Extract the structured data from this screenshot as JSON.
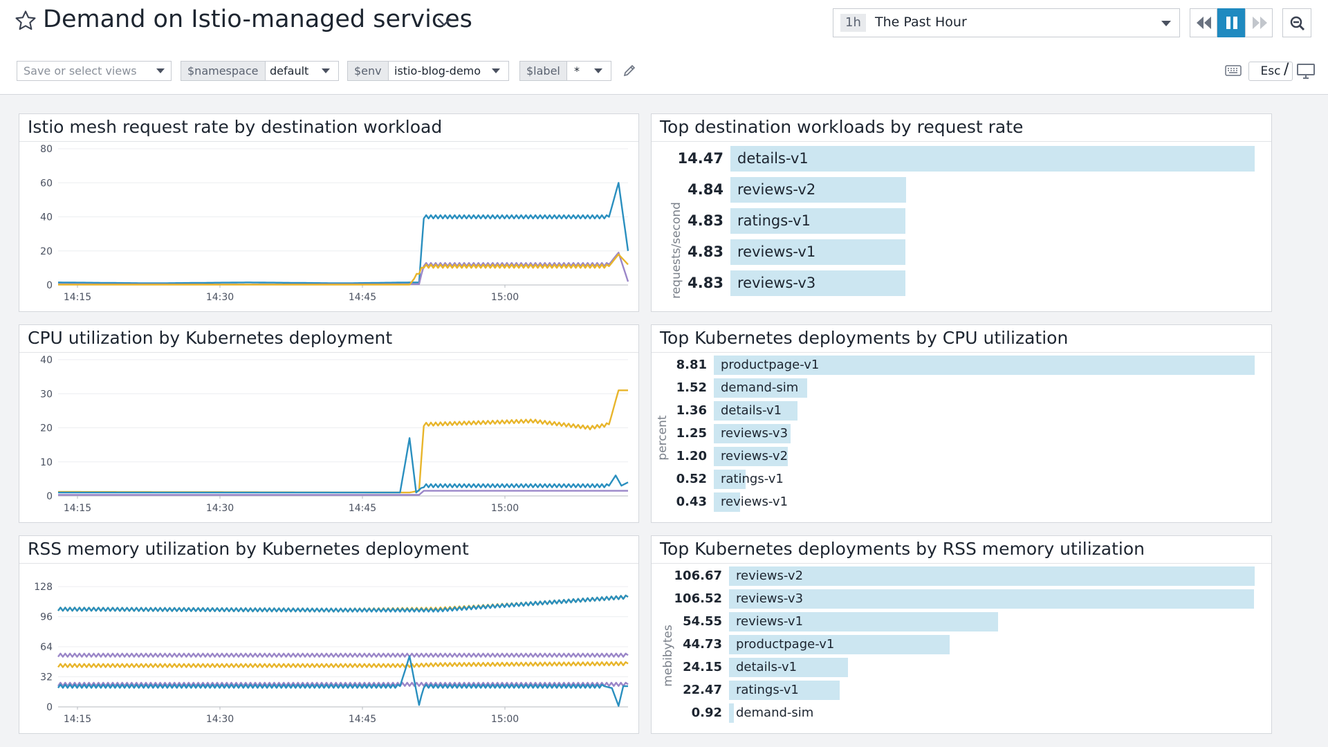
{
  "header": {
    "title": "Demand on Istio-managed services",
    "timeframe": {
      "badge": "1h",
      "label": "The Past Hour"
    },
    "esc_label": "Esc",
    "slash": "/"
  },
  "toolbar": {
    "views_placeholder": "Save or select views",
    "vars": [
      {
        "name": "$namespace",
        "value": "default"
      },
      {
        "name": "$env",
        "value": "istio-blog-demo"
      },
      {
        "name": "$label",
        "value": "*"
      }
    ]
  },
  "icons": {
    "star": "star-icon",
    "chevron": "chevron-down-icon",
    "pencil": "pencil-icon",
    "rewind": "rewind-icon",
    "pause": "pause-icon",
    "forward": "fast-forward-icon",
    "zoom": "zoom-out-icon",
    "keyboard": "keyboard-icon",
    "tv": "tv-mode-icon"
  },
  "colors": {
    "series_blue": "#2a8fbf",
    "series_purple": "#9a86c8",
    "series_yellow": "#e8b52b",
    "bar_fill": "#cce6f1",
    "accent": "#1f8ac0"
  },
  "panels": {
    "request_rate": {
      "title": "Istio mesh request rate by destination workload",
      "chart_data": {
        "type": "line",
        "x_ticks": [
          "14:15",
          "14:30",
          "14:45",
          "15:00"
        ],
        "y_ticks": [
          0,
          20,
          40,
          60,
          80
        ],
        "ylim": [
          0,
          80
        ],
        "x_range_minutes": [
          0,
          60
        ],
        "series": [
          {
            "color": "#2a8fbf",
            "points": [
              [
                0,
                1.5
              ],
              [
                10,
                1
              ],
              [
                20,
                1.5
              ],
              [
                30,
                1
              ],
              [
                37,
                1.5
              ],
              [
                38,
                1.5
              ],
              [
                38.5,
                40
              ],
              [
                58,
                40
              ],
              [
                59,
                60
              ],
              [
                60,
                20
              ]
            ]
          },
          {
            "color": "#9a86c8",
            "points": [
              [
                0,
                0.5
              ],
              [
                20,
                0.3
              ],
              [
                37,
                0.5
              ],
              [
                38,
                0.5
              ],
              [
                38.5,
                12
              ],
              [
                58,
                12
              ],
              [
                59,
                19
              ],
              [
                60,
                2
              ]
            ]
          },
          {
            "color": "#e8b52b",
            "points": [
              [
                0,
                0.2
              ],
              [
                37,
                0.2
              ],
              [
                38.5,
                11
              ],
              [
                58,
                11
              ],
              [
                59,
                18
              ],
              [
                60,
                12
              ]
            ]
          }
        ]
      }
    },
    "top_request": {
      "title": "Top destination workloads by request rate",
      "unit": "requests/second",
      "chart_data": {
        "type": "bar",
        "rows": [
          {
            "value": 14.47,
            "label": "details-v1"
          },
          {
            "value": 4.84,
            "label": "reviews-v2"
          },
          {
            "value": 4.83,
            "label": "ratings-v1"
          },
          {
            "value": 4.83,
            "label": "reviews-v1"
          },
          {
            "value": 4.83,
            "label": "reviews-v3"
          }
        ],
        "display": [
          "14.47",
          "4.84",
          "4.83",
          "4.83",
          "4.83"
        ]
      }
    },
    "cpu": {
      "title": "CPU utilization by Kubernetes deployment",
      "chart_data": {
        "type": "line",
        "x_ticks": [
          "14:15",
          "14:30",
          "14:45",
          "15:00"
        ],
        "y_ticks": [
          0,
          10,
          20,
          30,
          40
        ],
        "ylim": [
          0,
          40
        ],
        "x_range_minutes": [
          0,
          60
        ],
        "series": [
          {
            "color": "#e8b52b",
            "points": [
              [
                0,
                1.2
              ],
              [
                37,
                1
              ],
              [
                38,
                1.5
              ],
              [
                38.5,
                21
              ],
              [
                50,
                22
              ],
              [
                56,
                20
              ],
              [
                58,
                21
              ],
              [
                59,
                31
              ],
              [
                60,
                31
              ]
            ]
          },
          {
            "color": "#2a8fbf",
            "points": [
              [
                0,
                1
              ],
              [
                30,
                1
              ],
              [
                36,
                1
              ],
              [
                37,
                17
              ],
              [
                37.7,
                1
              ],
              [
                38.5,
                3
              ],
              [
                58,
                3
              ],
              [
                58.7,
                6
              ],
              [
                59.3,
                3
              ],
              [
                60,
                4
              ]
            ]
          },
          {
            "color": "#9a86c8",
            "points": [
              [
                0,
                0.3
              ],
              [
                38,
                0.3
              ],
              [
                38.5,
                1.5
              ],
              [
                60,
                1.5
              ]
            ]
          }
        ]
      }
    },
    "top_cpu": {
      "title": "Top Kubernetes deployments by CPU utilization",
      "unit": "percent",
      "chart_data": {
        "type": "bar",
        "rows": [
          {
            "value": 8.81,
            "label": "productpage-v1"
          },
          {
            "value": 1.52,
            "label": "demand-sim"
          },
          {
            "value": 1.36,
            "label": "details-v1"
          },
          {
            "value": 1.25,
            "label": "reviews-v3"
          },
          {
            "value": 1.2,
            "label": "reviews-v2"
          },
          {
            "value": 0.52,
            "label": "ratings-v1"
          },
          {
            "value": 0.43,
            "label": "reviews-v1"
          }
        ],
        "display": [
          "8.81",
          "1.52",
          "1.36",
          "1.25",
          "1.20",
          "0.52",
          "0.43"
        ]
      }
    },
    "memory": {
      "title": "RSS memory utilization by Kubernetes deployment",
      "chart_data": {
        "type": "line",
        "x_ticks": [
          "14:15",
          "14:30",
          "14:45",
          "15:00"
        ],
        "y_ticks": [
          0,
          32,
          64,
          96,
          128
        ],
        "ylim": [
          0,
          145
        ],
        "x_range_minutes": [
          0,
          60
        ],
        "series": [
          {
            "color": "#e8b52b",
            "points": [
              [
                0,
                104
              ],
              [
                30,
                103
              ],
              [
                40,
                104
              ],
              [
                50,
                110
              ],
              [
                60,
                117
              ]
            ]
          },
          {
            "color": "#2a8fbf",
            "points": [
              [
                0,
                104
              ],
              [
                30,
                103
              ],
              [
                40,
                103
              ],
              [
                50,
                110
              ],
              [
                60,
                117
              ]
            ]
          },
          {
            "color": "#9a86c8",
            "points": [
              [
                0,
                55
              ],
              [
                60,
                55
              ]
            ]
          },
          {
            "color": "#e8b52b",
            "points": [
              [
                0,
                44
              ],
              [
                37,
                44
              ],
              [
                40,
                45
              ],
              [
                60,
                46
              ]
            ]
          },
          {
            "color": "#9a86c8",
            "points": [
              [
                0,
                24
              ],
              [
                60,
                24
              ]
            ]
          },
          {
            "color": "#2a8fbf",
            "points": [
              [
                0,
                22
              ],
              [
                36,
                22
              ],
              [
                37,
                54
              ],
              [
                38,
                2
              ],
              [
                38.5,
                22
              ],
              [
                57.5,
                22
              ],
              [
                58.3,
                20
              ],
              [
                59,
                1
              ],
              [
                59.5,
                22
              ],
              [
                60,
                22
              ]
            ]
          }
        ]
      }
    },
    "top_memory": {
      "title": "Top Kubernetes deployments by RSS memory utilization",
      "unit": "mebibytes",
      "chart_data": {
        "type": "bar",
        "rows": [
          {
            "value": 106.67,
            "label": "reviews-v2"
          },
          {
            "value": 106.52,
            "label": "reviews-v3"
          },
          {
            "value": 54.55,
            "label": "reviews-v1"
          },
          {
            "value": 44.73,
            "label": "productpage-v1"
          },
          {
            "value": 24.15,
            "label": "details-v1"
          },
          {
            "value": 22.47,
            "label": "ratings-v1"
          },
          {
            "value": 0.92,
            "label": "demand-sim"
          }
        ],
        "display": [
          "106.67",
          "106.52",
          "54.55",
          "44.73",
          "24.15",
          "22.47",
          "0.92"
        ]
      }
    }
  }
}
